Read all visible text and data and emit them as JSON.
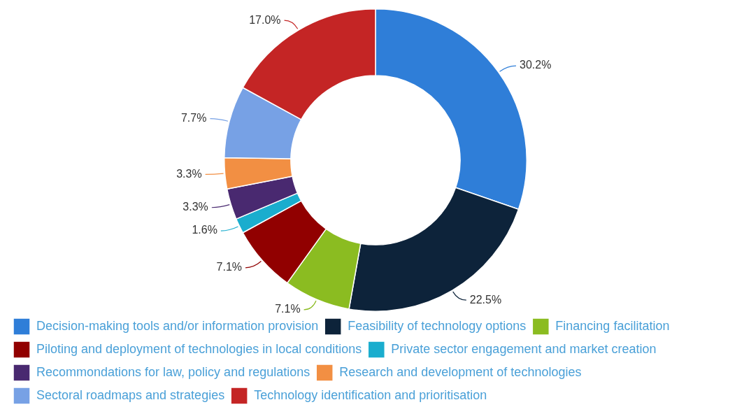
{
  "chart_data": {
    "type": "donut",
    "categories": [
      "Decision-making tools and/or information provision",
      "Feasibility of technology options",
      "Financing facilitation",
      "Piloting and deployment of technologies in local conditions",
      "Private sector engagement and market creation",
      "Recommondations for law, policy and regulations",
      "Research and development of technologies",
      "Sectoral roadmaps and strategies",
      "Technology identification and prioritisation"
    ],
    "values": [
      30.2,
      22.5,
      7.1,
      7.1,
      1.6,
      3.3,
      3.3,
      7.7,
      17.0
    ],
    "value_labels": [
      "30.2%",
      "22.5%",
      "7.1%",
      "7.1%",
      "1.6%",
      "3.3%",
      "3.3%",
      "7.7%",
      "17.0%"
    ],
    "colors": [
      "#2f7ed8",
      "#0d233a",
      "#8bbc21",
      "#910000",
      "#1aadce",
      "#492970",
      "#f28f43",
      "#77a1e5",
      "#c42525"
    ],
    "legend": "bottom"
  }
}
